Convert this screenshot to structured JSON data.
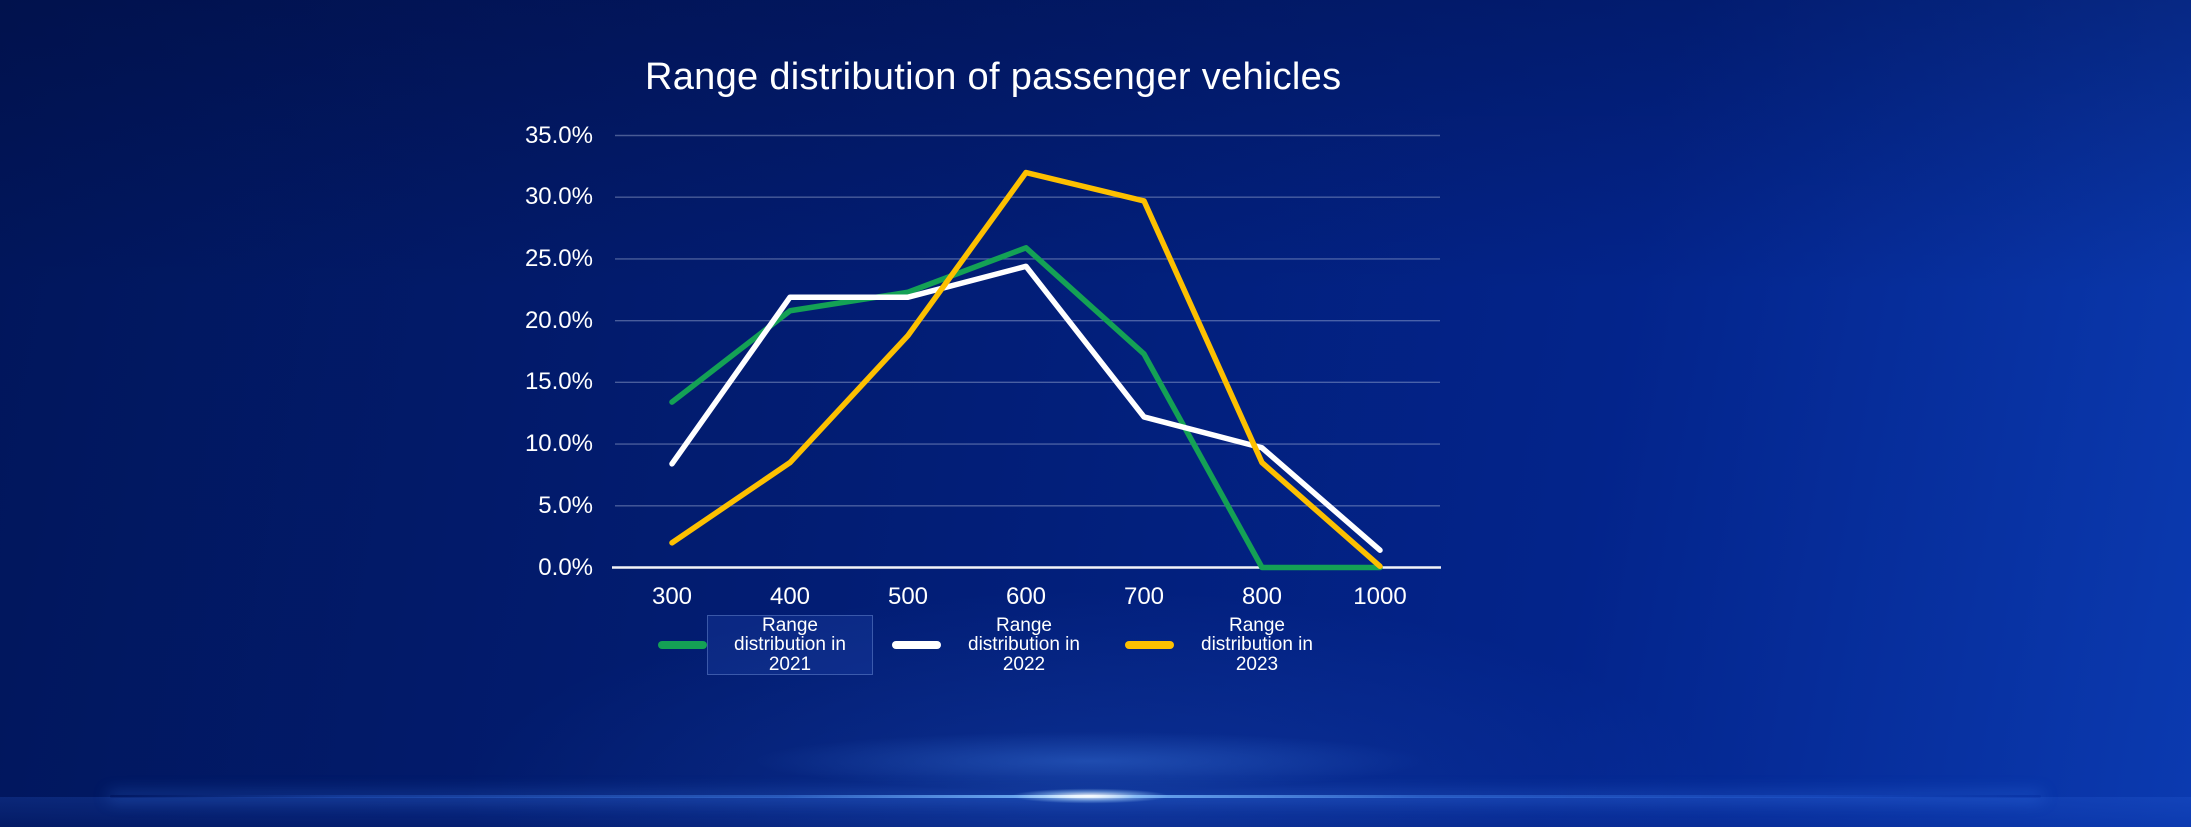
{
  "chart_data": {
    "type": "line",
    "title": "Range distribution of passenger vehicles",
    "xlabel": "",
    "ylabel": "",
    "x_categories": [
      "300",
      "400",
      "500",
      "600",
      "700",
      "800",
      "1000"
    ],
    "y_tick_labels": [
      "35.0%",
      "30.0%",
      "25.0%",
      "20.0%",
      "15.0%",
      "10.0%",
      "5.0%",
      "0.0%"
    ],
    "ylim": [
      0,
      35
    ],
    "y_tick_step": 5,
    "grid": "horizontal",
    "legend_position": "bottom",
    "series": [
      {
        "name": "Range distribution in 2021",
        "color": "#14a155",
        "values": [
          13.4,
          20.8,
          22.3,
          25.9,
          17.3,
          0.0,
          0.0
        ]
      },
      {
        "name": "Range distribution in 2022",
        "color": "#ffffff",
        "values": [
          8.4,
          21.9,
          21.9,
          24.4,
          12.2,
          9.7,
          1.4
        ]
      },
      {
        "name": "Range distribution in 2023",
        "color": "#fdc000",
        "values": [
          2.0,
          8.5,
          18.8,
          32.0,
          29.7,
          8.5,
          0.1
        ]
      }
    ],
    "legend_highlighted_item": "Range distribution in 2021"
  },
  "colors": {
    "background_left": "#01165b",
    "background_right": "#0b3ab0",
    "series_2021": "#14a155",
    "series_2022": "#ffffff",
    "series_2023": "#fdc000",
    "gridline": "rgba(190,202,232,0.38)",
    "axis_line": "#ffffff",
    "title_text": "#ffffff",
    "glow": "#6aa8ff"
  }
}
